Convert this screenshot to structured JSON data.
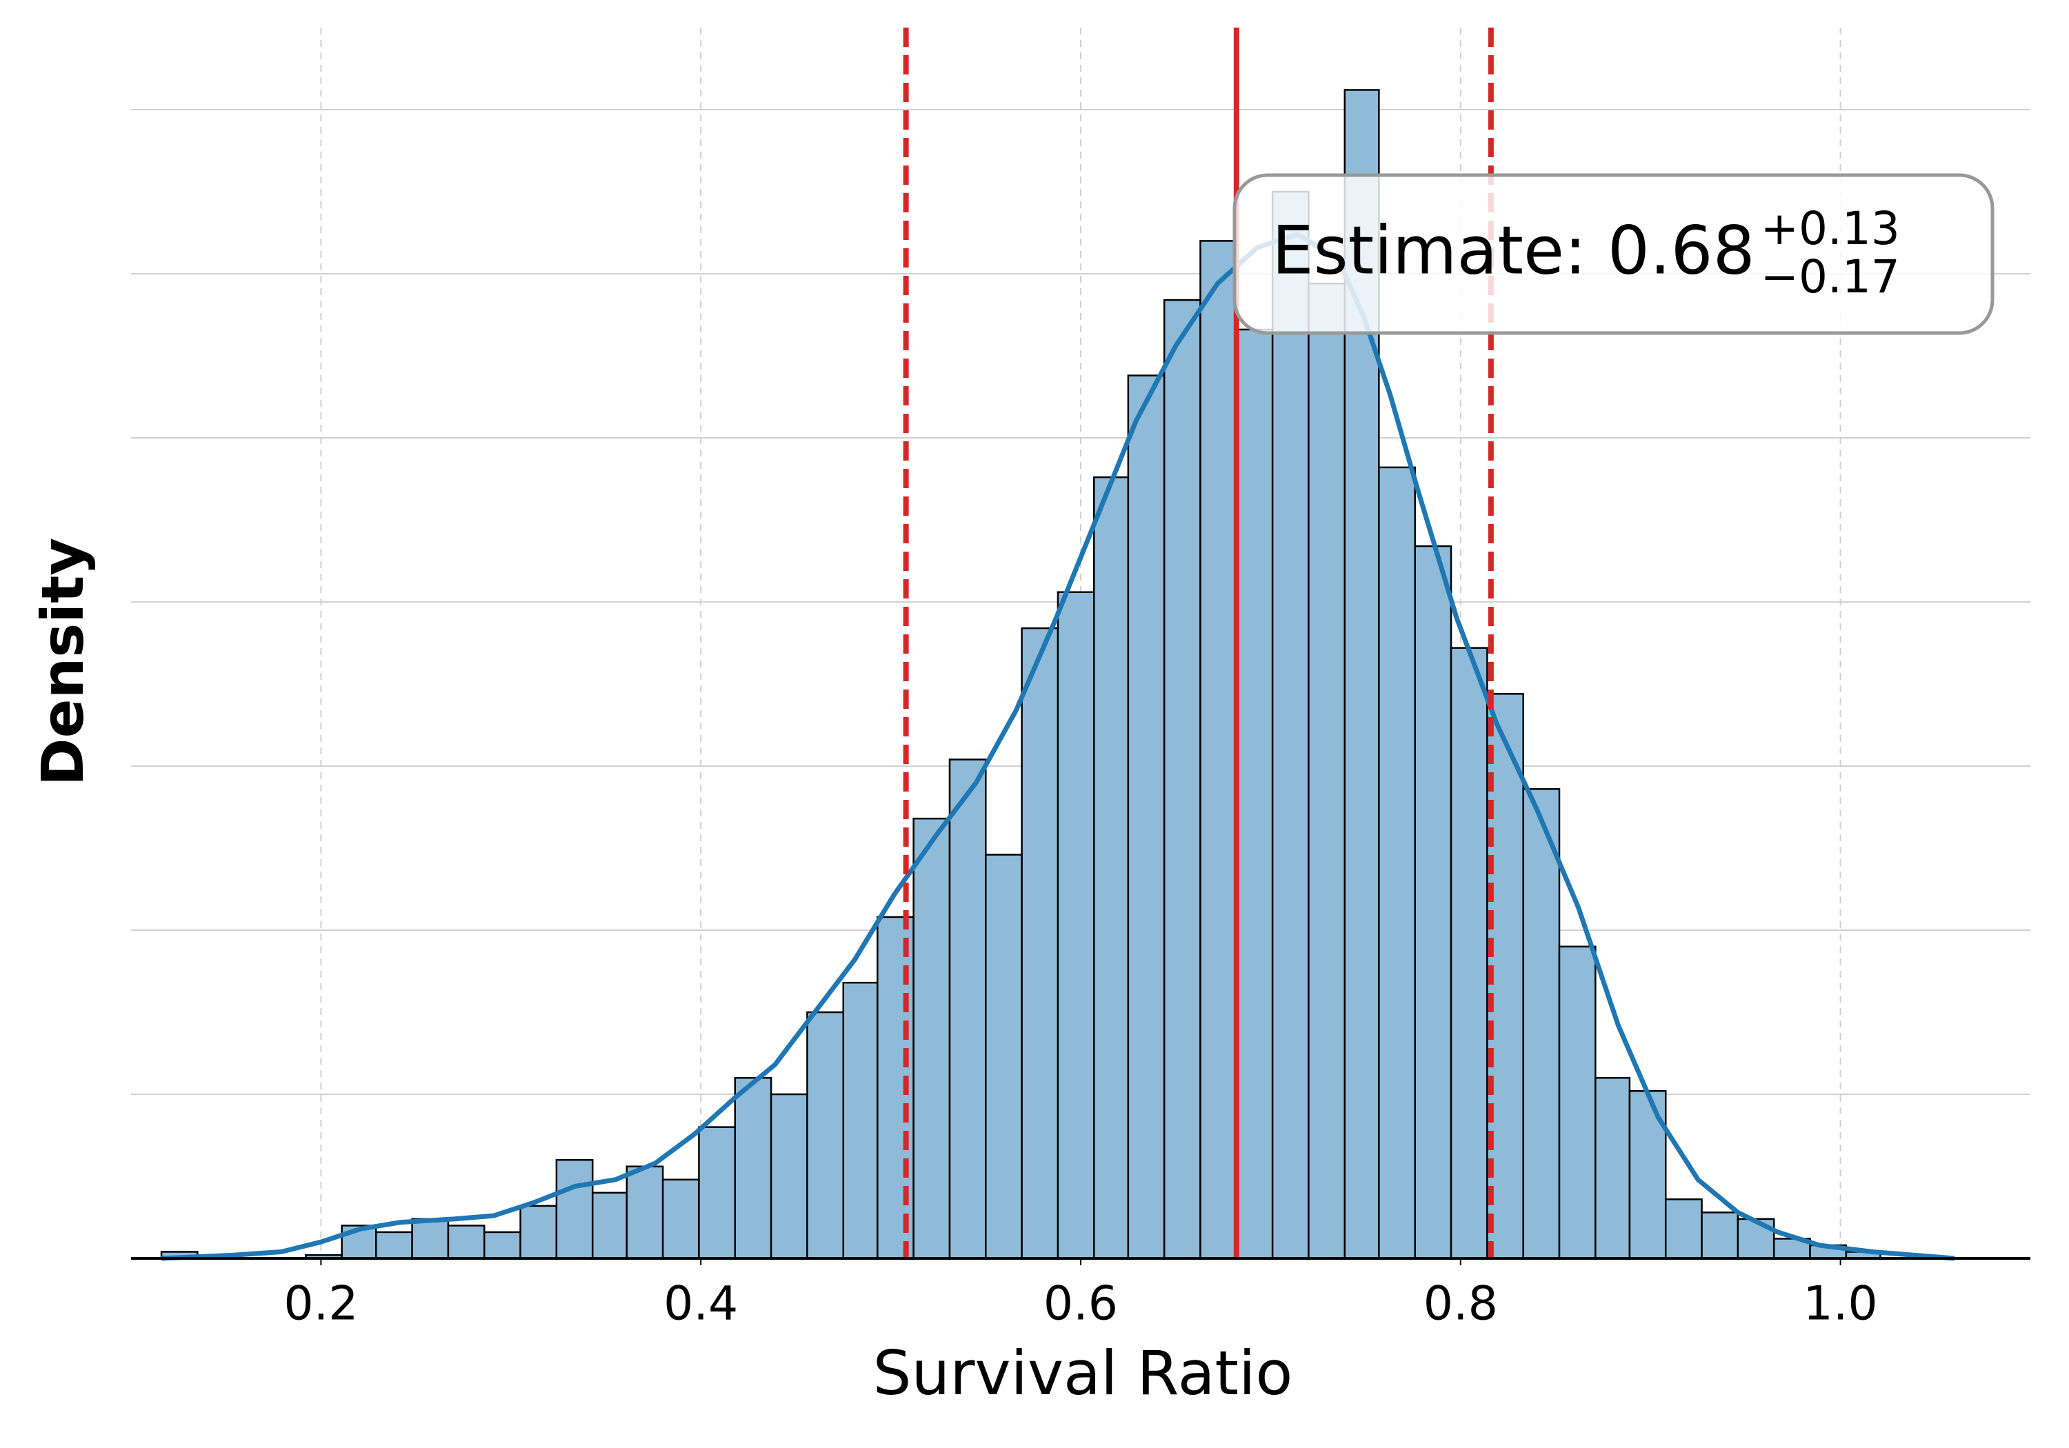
{
  "chart_data": {
    "type": "histogram",
    "xlabel": "Survival Ratio",
    "ylabel": "Density",
    "bins": [
      0.116,
      0.135,
      0.154,
      0.173,
      0.192,
      0.211,
      0.229,
      0.248,
      0.267,
      0.286,
      0.305,
      0.324,
      0.343,
      0.361,
      0.38,
      0.399,
      0.418,
      0.437,
      0.456,
      0.475,
      0.493,
      0.512,
      0.531,
      0.55,
      0.569,
      0.588,
      0.607,
      0.625,
      0.644,
      0.663,
      0.682,
      0.701,
      0.72,
      0.739,
      0.757,
      0.776,
      0.795,
      0.814,
      0.833,
      0.852,
      0.871,
      0.889,
      0.908,
      0.927,
      0.946,
      0.965,
      0.984,
      1.003,
      1.021
    ],
    "values": [
      0.02,
      0,
      0,
      0,
      0.01,
      0.1,
      0.08,
      0.12,
      0.1,
      0.08,
      0.16,
      0.3,
      0.2,
      0.28,
      0.24,
      0.4,
      0.55,
      0.5,
      0.75,
      0.84,
      1.04,
      1.34,
      1.52,
      1.23,
      1.92,
      2.03,
      2.38,
      2.69,
      2.92,
      3.1,
      2.83,
      3.25,
      2.97,
      3.56,
      2.41,
      2.17,
      1.86,
      1.72,
      1.43,
      0.95,
      0.55,
      0.51,
      0.18,
      0.14,
      0.12,
      0.06,
      0.04,
      0.02
    ],
    "color": "#8fbbd9",
    "kde": {
      "color": "#1f77b4",
      "x": [
        0.116,
        0.154,
        0.179,
        0.2,
        0.221,
        0.242,
        0.27,
        0.291,
        0.312,
        0.334,
        0.355,
        0.376,
        0.397,
        0.418,
        0.439,
        0.46,
        0.481,
        0.502,
        0.524,
        0.545,
        0.566,
        0.587,
        0.608,
        0.629,
        0.65,
        0.672,
        0.693,
        0.714,
        0.735,
        0.749,
        0.763,
        0.777,
        0.798,
        0.819,
        0.84,
        0.862,
        0.883,
        0.904,
        0.925,
        0.946,
        0.967,
        0.989,
        1.017,
        1.06
      ],
      "y": [
        0.0,
        0.01,
        0.02,
        0.05,
        0.09,
        0.11,
        0.12,
        0.13,
        0.17,
        0.22,
        0.24,
        0.29,
        0.38,
        0.49,
        0.59,
        0.75,
        0.91,
        1.11,
        1.29,
        1.45,
        1.67,
        1.95,
        2.25,
        2.55,
        2.78,
        2.97,
        3.08,
        3.12,
        3.05,
        2.87,
        2.63,
        2.35,
        1.95,
        1.63,
        1.37,
        1.07,
        0.71,
        0.43,
        0.24,
        0.14,
        0.08,
        0.04,
        0.02,
        0.0
      ]
    },
    "vlines": [
      {
        "value": 0.682,
        "style": "solid",
        "color": "#d62728"
      },
      {
        "value": 0.508,
        "style": "dashed",
        "color": "#d62728"
      },
      {
        "value": 0.816,
        "style": "dashed",
        "color": "#d62728"
      }
    ],
    "annotation": {
      "text": "Estimate: 0.68",
      "upper": "+0.13",
      "lower": "−0.17"
    },
    "xlim": [
      0.1,
      1.1
    ],
    "xticks": [
      0.2,
      0.4,
      0.6,
      0.8,
      {
        "value": 1,
        "label": "1.0"
      }
    ],
    "ylim": [
      0,
      3.75
    ],
    "yticks": [
      0,
      0.5,
      1,
      1.5,
      2,
      2.5,
      3,
      3.5
    ],
    "grid": true
  }
}
